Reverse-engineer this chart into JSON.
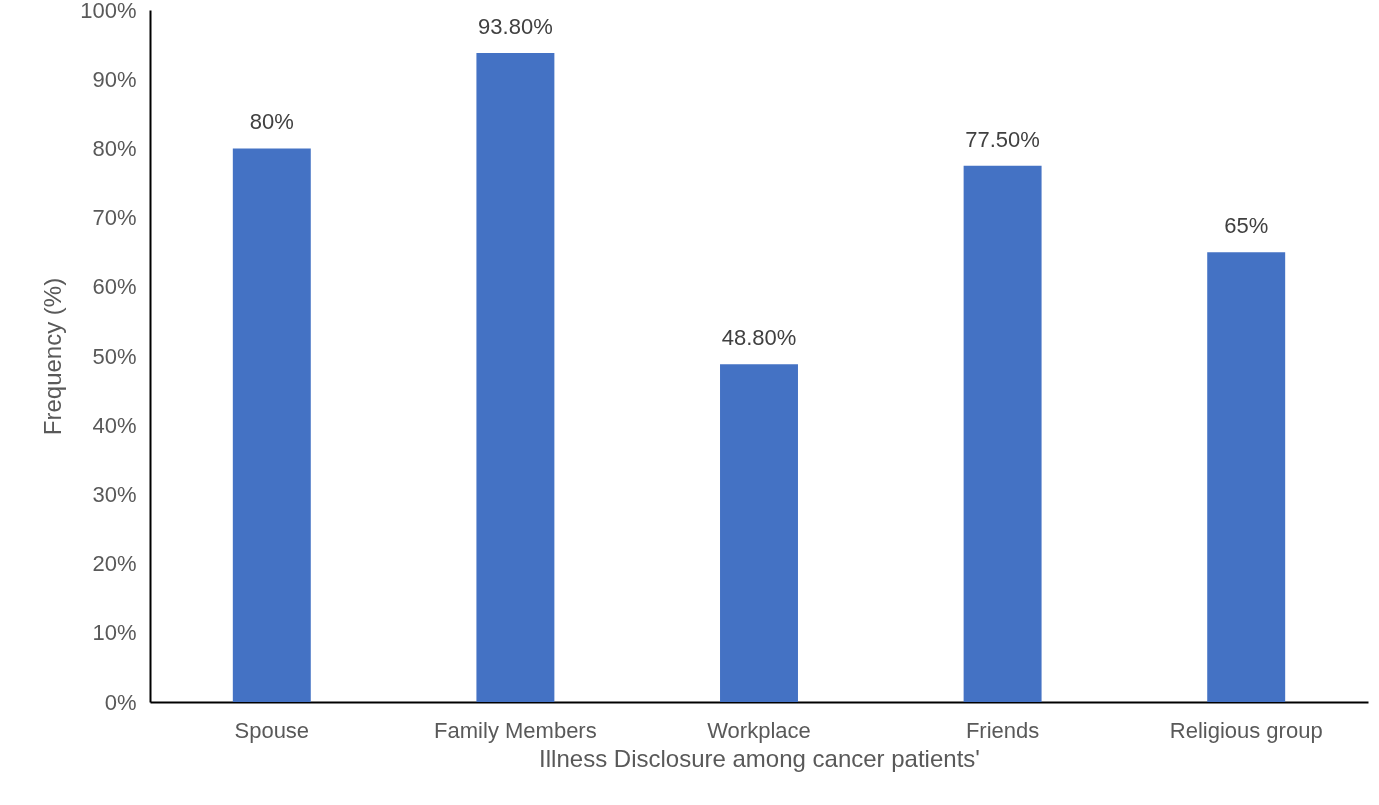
{
  "chart_data": {
    "type": "bar",
    "xlabel": "Illness Disclosure among cancer patients'",
    "ylabel": "Frequency (%)",
    "categories": [
      "Spouse",
      "Family Members",
      "Workplace",
      "Friends",
      "Religious group"
    ],
    "values": [
      80,
      93.8,
      48.8,
      77.5,
      65
    ],
    "value_labels": [
      "80%",
      "93.80%",
      "48.80%",
      "77.50%",
      "65%"
    ],
    "color": "#4472c4",
    "ylim": [
      0,
      100
    ],
    "yticks": [
      {
        "value": 0,
        "label": "0%"
      },
      {
        "value": 10,
        "label": "10%"
      },
      {
        "value": 20,
        "label": "20%"
      },
      {
        "value": 30,
        "label": "30%"
      },
      {
        "value": 40,
        "label": "40%"
      },
      {
        "value": 50,
        "label": "50%"
      },
      {
        "value": 60,
        "label": "60%"
      },
      {
        "value": 70,
        "label": "70%"
      },
      {
        "value": 80,
        "label": "80%"
      },
      {
        "value": 90,
        "label": "90%"
      },
      {
        "value": 100,
        "label": "100%"
      }
    ],
    "grid": false
  }
}
